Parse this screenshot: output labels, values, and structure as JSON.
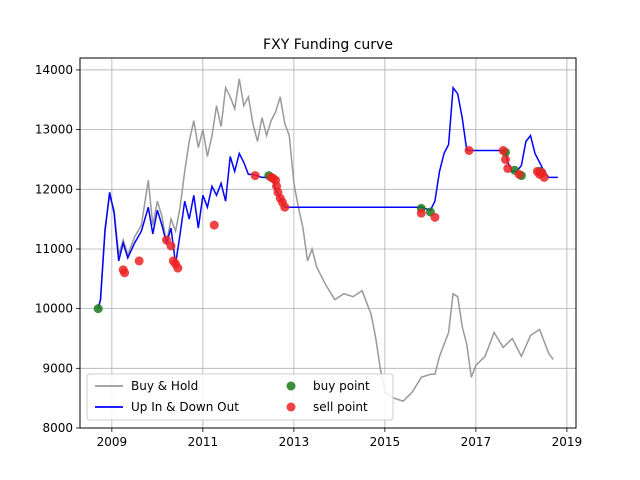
{
  "chart_data": {
    "type": "line",
    "title": "FXY Funding curve",
    "xlabel": "",
    "ylabel": "",
    "xlim": [
      2008.3,
      2019.2
    ],
    "ylim": [
      8000,
      14200
    ],
    "x_ticks": [
      2009,
      2011,
      2013,
      2015,
      2017,
      2019
    ],
    "y_ticks": [
      8000,
      9000,
      10000,
      11000,
      12000,
      13000,
      14000
    ],
    "grid": true,
    "legend_position": "lower-left",
    "legend_columns": 2,
    "series": [
      {
        "name": "Buy & Hold",
        "kind": "line",
        "color": "#999999",
        "x": [
          2008.7,
          2008.75,
          2008.85,
          2008.95,
          2009.05,
          2009.15,
          2009.25,
          2009.35,
          2009.5,
          2009.65,
          2009.8,
          2009.9,
          2010.0,
          2010.1,
          2010.2,
          2010.3,
          2010.4,
          2010.5,
          2010.6,
          2010.7,
          2010.8,
          2010.9,
          2011.0,
          2011.1,
          2011.2,
          2011.3,
          2011.4,
          2011.5,
          2011.6,
          2011.7,
          2011.8,
          2011.9,
          2012.0,
          2012.1,
          2012.2,
          2012.3,
          2012.4,
          2012.5,
          2012.6,
          2012.7,
          2012.8,
          2012.9,
          2013.0,
          2013.1,
          2013.2,
          2013.3,
          2013.4,
          2013.5,
          2013.7,
          2013.9,
          2014.1,
          2014.3,
          2014.5,
          2014.7,
          2014.8,
          2014.9,
          2015.0,
          2015.2,
          2015.4,
          2015.6,
          2015.8,
          2016.0,
          2016.1,
          2016.2,
          2016.3,
          2016.4,
          2016.5,
          2016.6,
          2016.7,
          2016.8,
          2016.9,
          2017.0,
          2017.2,
          2017.4,
          2017.6,
          2017.8,
          2018.0,
          2018.2,
          2018.4,
          2018.6,
          2018.7
        ],
        "y": [
          10000,
          10150,
          11350,
          11900,
          11650,
          10900,
          11150,
          10900,
          11200,
          11400,
          12150,
          11400,
          11800,
          11550,
          11100,
          11500,
          11300,
          11700,
          12300,
          12800,
          13150,
          12700,
          13000,
          12550,
          12900,
          13400,
          13050,
          13700,
          13550,
          13350,
          13850,
          13400,
          13550,
          13100,
          12800,
          13200,
          12900,
          13150,
          13300,
          13550,
          13100,
          12900,
          12100,
          11700,
          11350,
          10800,
          11000,
          10700,
          10400,
          10150,
          10250,
          10200,
          10300,
          9900,
          9500,
          9000,
          8600,
          8500,
          8450,
          8600,
          8850,
          8900,
          8900,
          9200,
          9400,
          9600,
          10250,
          10200,
          9700,
          9400,
          8850,
          9050,
          9200,
          9600,
          9350,
          9500,
          9200,
          9550,
          9650,
          9250,
          9150
        ]
      },
      {
        "name": "Up In & Down Out",
        "kind": "line",
        "color": "#0000ff",
        "x": [
          2008.7,
          2008.75,
          2008.85,
          2008.95,
          2009.05,
          2009.15,
          2009.25,
          2009.35,
          2009.5,
          2009.65,
          2009.8,
          2009.9,
          2010.0,
          2010.1,
          2010.2,
          2010.3,
          2010.4,
          2010.5,
          2010.6,
          2010.7,
          2010.8,
          2010.9,
          2011.0,
          2011.1,
          2011.2,
          2011.3,
          2011.4,
          2011.5,
          2011.6,
          2011.7,
          2011.8,
          2011.9,
          2012.0,
          2012.1,
          2012.3,
          2012.5,
          2012.6,
          2012.7,
          2012.8,
          2013.0,
          2014.0,
          2015.0,
          2015.8,
          2016.0,
          2016.1,
          2016.2,
          2016.3,
          2016.4,
          2016.5,
          2016.6,
          2016.7,
          2016.8,
          2016.9,
          2017.5,
          2017.65,
          2017.7,
          2017.8,
          2017.9,
          2018.0,
          2018.1,
          2018.2,
          2018.3,
          2018.4,
          2018.5,
          2018.6,
          2018.8
        ],
        "y": [
          10000,
          10150,
          11300,
          11950,
          11600,
          10800,
          11100,
          10850,
          11100,
          11300,
          11700,
          11250,
          11650,
          11400,
          11100,
          11350,
          10750,
          11250,
          11800,
          11500,
          11900,
          11350,
          11900,
          11700,
          12050,
          11900,
          12100,
          11800,
          12550,
          12300,
          12600,
          12450,
          12250,
          12250,
          12200,
          12200,
          12000,
          11850,
          11700,
          11700,
          11700,
          11700,
          11700,
          11650,
          11800,
          12300,
          12600,
          12750,
          13700,
          13600,
          13200,
          12650,
          12650,
          12650,
          12650,
          12450,
          12300,
          12300,
          12400,
          12800,
          12900,
          12600,
          12450,
          12300,
          12200,
          12200
        ]
      },
      {
        "name": "buy point",
        "kind": "points",
        "color": "#1a7a1a",
        "x": [
          2008.7,
          2012.45,
          2015.8,
          2016.0,
          2017.65,
          2017.85,
          2018.0,
          2018.4
        ],
        "y": [
          10000,
          12230,
          11680,
          11620,
          12620,
          12320,
          12230,
          12300
        ]
      },
      {
        "name": "sell point",
        "kind": "points",
        "color": "#ee2222",
        "x": [
          2009.25,
          2009.28,
          2009.6,
          2010.2,
          2010.3,
          2010.35,
          2010.4,
          2010.45,
          2011.25,
          2012.15,
          2012.5,
          2012.55,
          2012.6,
          2012.62,
          2012.65,
          2012.7,
          2012.75,
          2012.8,
          2015.8,
          2016.1,
          2016.85,
          2017.6,
          2017.65,
          2017.7,
          2017.95,
          2018.35,
          2018.4,
          2018.45,
          2018.5
        ],
        "y": [
          10650,
          10600,
          10800,
          11150,
          11050,
          10800,
          10750,
          10680,
          11400,
          12230,
          12200,
          12180,
          12150,
          12050,
          11950,
          11850,
          11780,
          11700,
          11600,
          11530,
          12650,
          12650,
          12500,
          12350,
          12250,
          12300,
          12250,
          12280,
          12200
        ]
      }
    ]
  }
}
